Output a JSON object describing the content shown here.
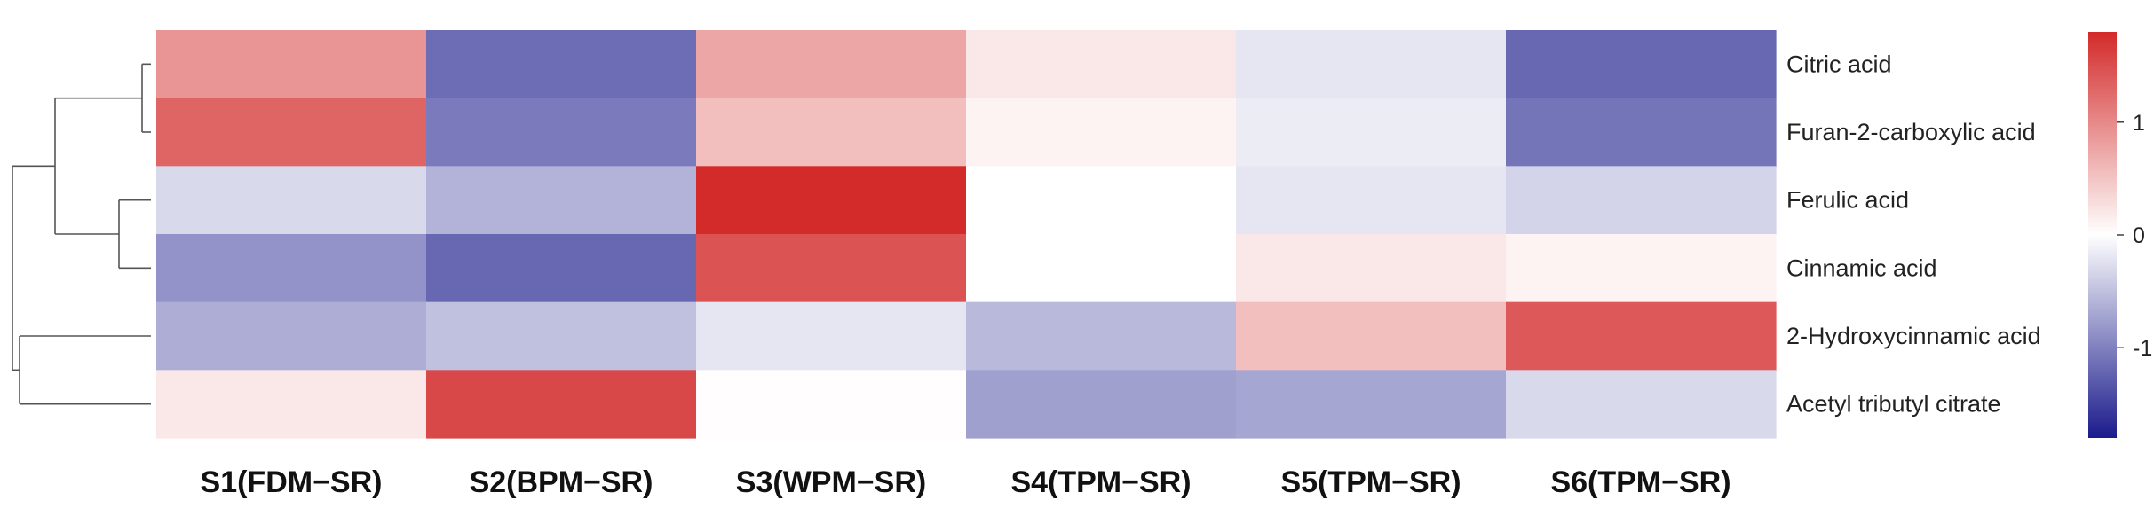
{
  "chart_data": {
    "type": "heatmap",
    "title": "",
    "columns": [
      "S1(FDM−SR)",
      "S2(BPM−SR)",
      "S3(WPM−SR)",
      "S4(TPM−SR)",
      "S5(TPM−SR)",
      "S6(TPM−SR)"
    ],
    "rows": [
      "Citric acid",
      "Furan-2-carboxylic acid",
      "Ferulic acid",
      "Cinnamic acid",
      "2-Hydroxycinnamic acid",
      "Acetyl tributyl citrate"
    ],
    "values": [
      [
        0.9,
        -1.15,
        0.75,
        0.2,
        -0.2,
        -1.2
      ],
      [
        1.3,
        -1.05,
        0.55,
        0.1,
        -0.15,
        -1.1
      ],
      [
        -0.3,
        -0.6,
        1.8,
        0.0,
        -0.2,
        -0.35
      ],
      [
        -0.85,
        -1.2,
        1.45,
        0.0,
        0.2,
        0.1
      ],
      [
        -0.65,
        -0.5,
        -0.2,
        -0.55,
        0.55,
        1.4
      ],
      [
        0.2,
        1.55,
        0.02,
        -0.75,
        -0.7,
        -0.3
      ]
    ],
    "colorbar": {
      "ticks": [
        1,
        0,
        -1
      ],
      "tick_labels": [
        "1",
        "0",
        "-1"
      ],
      "range": [
        -1.8,
        1.8
      ],
      "colors": {
        "low": "#1b1b8c",
        "mid": "#ffffff",
        "high": "#d32a2a"
      }
    },
    "row_dendrogram": true,
    "legend_position": "right"
  }
}
